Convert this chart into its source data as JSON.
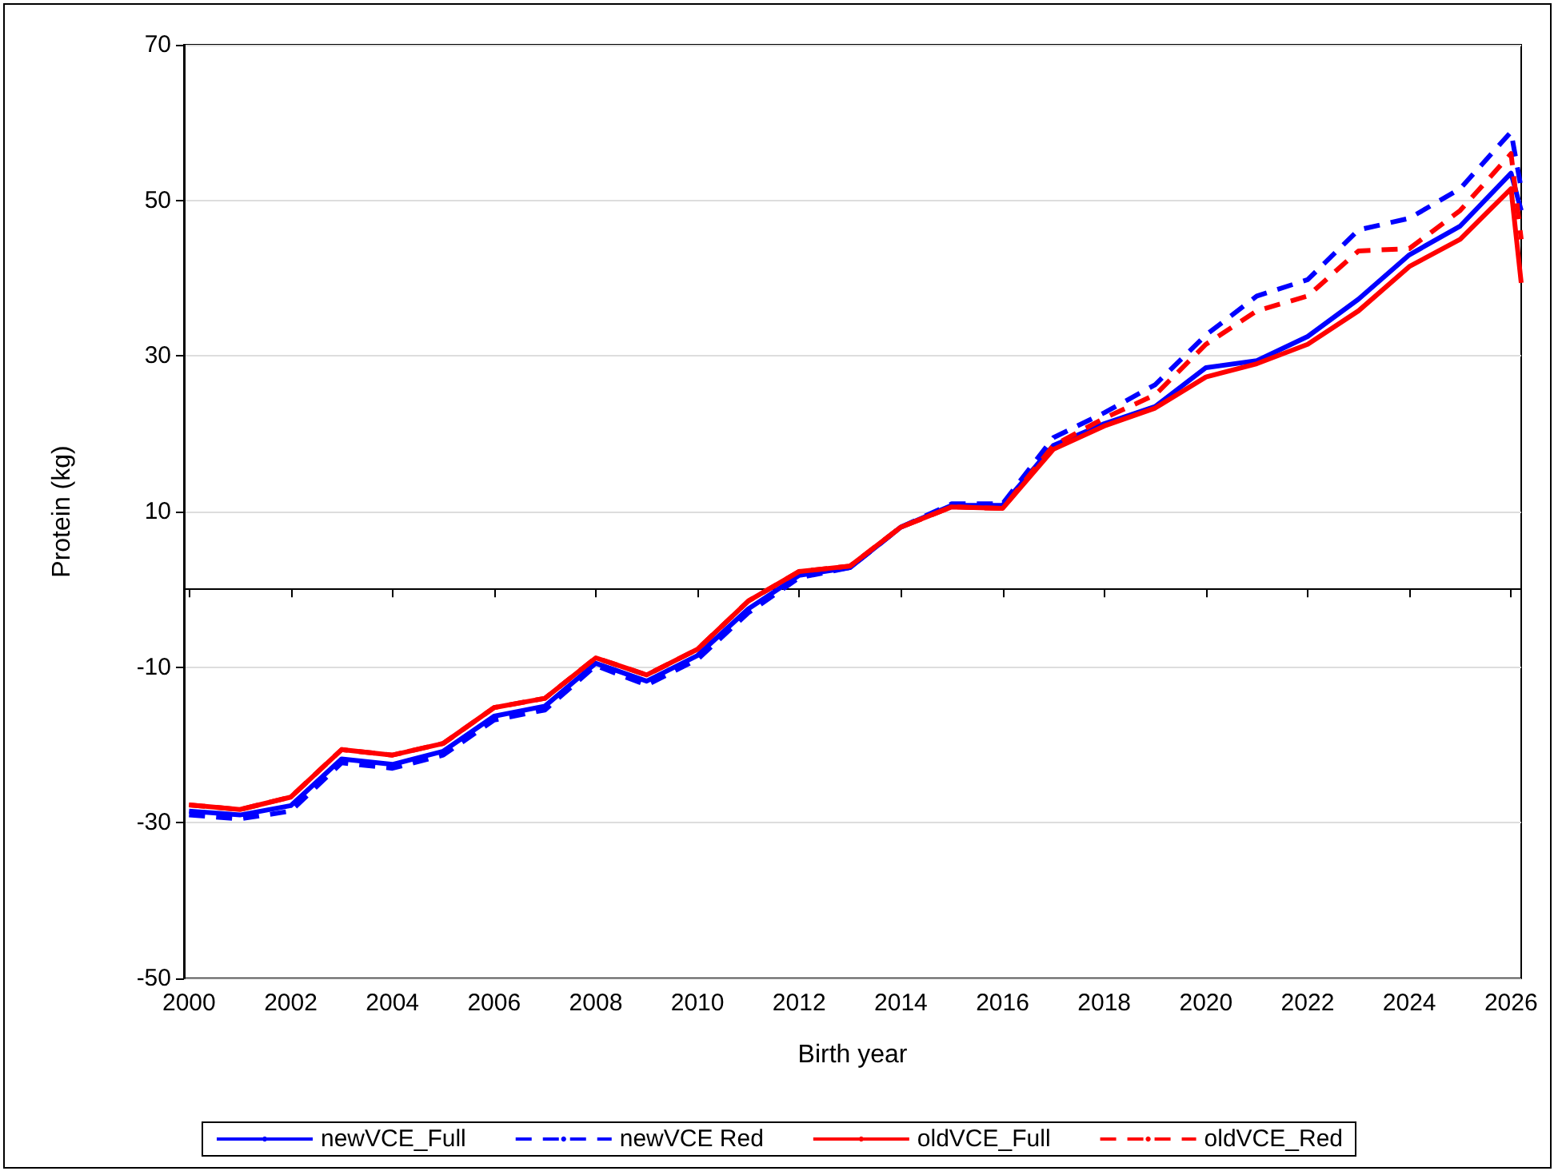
{
  "chart_data": {
    "type": "line",
    "xlabel": "Birth year",
    "ylabel": "Protein (kg)",
    "x": [
      2000,
      2001,
      2002,
      2003,
      2004,
      2005,
      2006,
      2007,
      2008,
      2009,
      2010,
      2011,
      2012,
      2013,
      2014,
      2015,
      2016,
      2017,
      2018,
      2019,
      2020,
      2021,
      2022,
      2023,
      2024,
      2025,
      2026,
      2026.2
    ],
    "series": [
      {
        "name": "newVCE_Full",
        "color": "#0000ff",
        "line_style": "solid",
        "values": [
          -28.5,
          -29,
          -27.8,
          -21.8,
          -22.5,
          -20.8,
          -16.3,
          -15,
          -9.5,
          -11.8,
          -8.5,
          -2.5,
          1.8,
          2.8,
          8,
          10.8,
          10.8,
          18.5,
          21.3,
          23.5,
          28.5,
          29.4,
          32.5,
          37.3,
          43,
          46.7,
          53.5,
          48.7
        ]
      },
      {
        "name": "newVCE Red",
        "color": "#0000ff",
        "line_style": "dashed",
        "values": [
          -29,
          -29.5,
          -28.5,
          -22.3,
          -23,
          -21.3,
          -16.8,
          -15.5,
          -9.8,
          -12.3,
          -9,
          -3,
          1.5,
          2.8,
          8,
          11,
          11,
          19.5,
          22.7,
          26.3,
          32.7,
          37.7,
          39.8,
          46.2,
          47.7,
          51.5,
          58.8,
          51.5
        ]
      },
      {
        "name": "oldVCE_Full",
        "color": "#ff0000",
        "line_style": "solid",
        "values": [
          -27.7,
          -28.3,
          -26.7,
          -20.6,
          -21.3,
          -19.8,
          -15.2,
          -14,
          -8.8,
          -11,
          -7.7,
          -1.5,
          2.3,
          3,
          8,
          10.6,
          10.4,
          18,
          21,
          23.3,
          27.3,
          29,
          31.5,
          35.8,
          41.5,
          45,
          51.5,
          39.4
        ]
      },
      {
        "name": "oldVCE_Red",
        "color": "#ff0000",
        "line_style": "dashed",
        "values": [
          -27.7,
          -28.3,
          -26.7,
          -20.6,
          -21.3,
          -19.8,
          -15.2,
          -14,
          -8.8,
          -11,
          -7.7,
          -1.5,
          2.3,
          3,
          8,
          10.6,
          10.4,
          18.5,
          22,
          25,
          31.5,
          35.8,
          37.7,
          43.5,
          43.8,
          48.7,
          56,
          45
        ]
      }
    ],
    "xlim": [
      1999.9,
      2026.2
    ],
    "xticks": [
      2000,
      2002,
      2004,
      2006,
      2008,
      2010,
      2012,
      2014,
      2016,
      2018,
      2020,
      2022,
      2024,
      2026
    ],
    "ylim": [
      -50,
      70
    ],
    "yticks": [
      -50,
      -30,
      -10,
      10,
      30,
      50,
      70
    ],
    "grid": "y",
    "legend": "bottom",
    "marker": "none"
  }
}
